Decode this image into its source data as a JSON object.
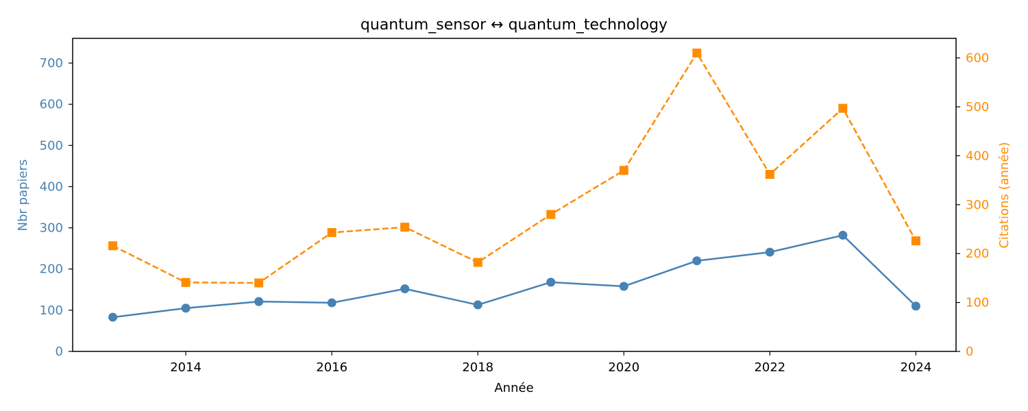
{
  "chart_data": {
    "type": "line",
    "title": "quantum_sensor  ↔  quantum_technology",
    "xlabel": "Année",
    "ylabel_left": "Nbr papiers",
    "ylabel_right": "Citations (année)",
    "x": [
      2013,
      2014,
      2015,
      2016,
      2017,
      2018,
      2019,
      2020,
      2021,
      2022,
      2023,
      2024
    ],
    "xlim": [
      2012.45,
      2024.55
    ],
    "xticks": [
      2014,
      2016,
      2018,
      2020,
      2022,
      2024
    ],
    "ylim_left": [
      0,
      760
    ],
    "yticks_left": [
      0,
      100,
      200,
      300,
      400,
      500,
      600,
      700
    ],
    "ylim_right": [
      0,
      640
    ],
    "yticks_right": [
      0,
      100,
      200,
      300,
      400,
      500,
      600
    ],
    "grid": false,
    "series": [
      {
        "axis": "left",
        "color": "#4682b4",
        "line_style": "solid",
        "marker": "circle",
        "values": [
          83,
          105,
          121,
          118,
          152,
          113,
          168,
          158,
          220,
          241,
          282,
          110
        ]
      },
      {
        "axis": "right",
        "color": "#ff8c00",
        "line_style": "dashed",
        "marker": "square",
        "values": [
          216,
          141,
          140,
          243,
          254,
          182,
          280,
          370,
          610,
          362,
          497,
          226
        ]
      }
    ]
  }
}
